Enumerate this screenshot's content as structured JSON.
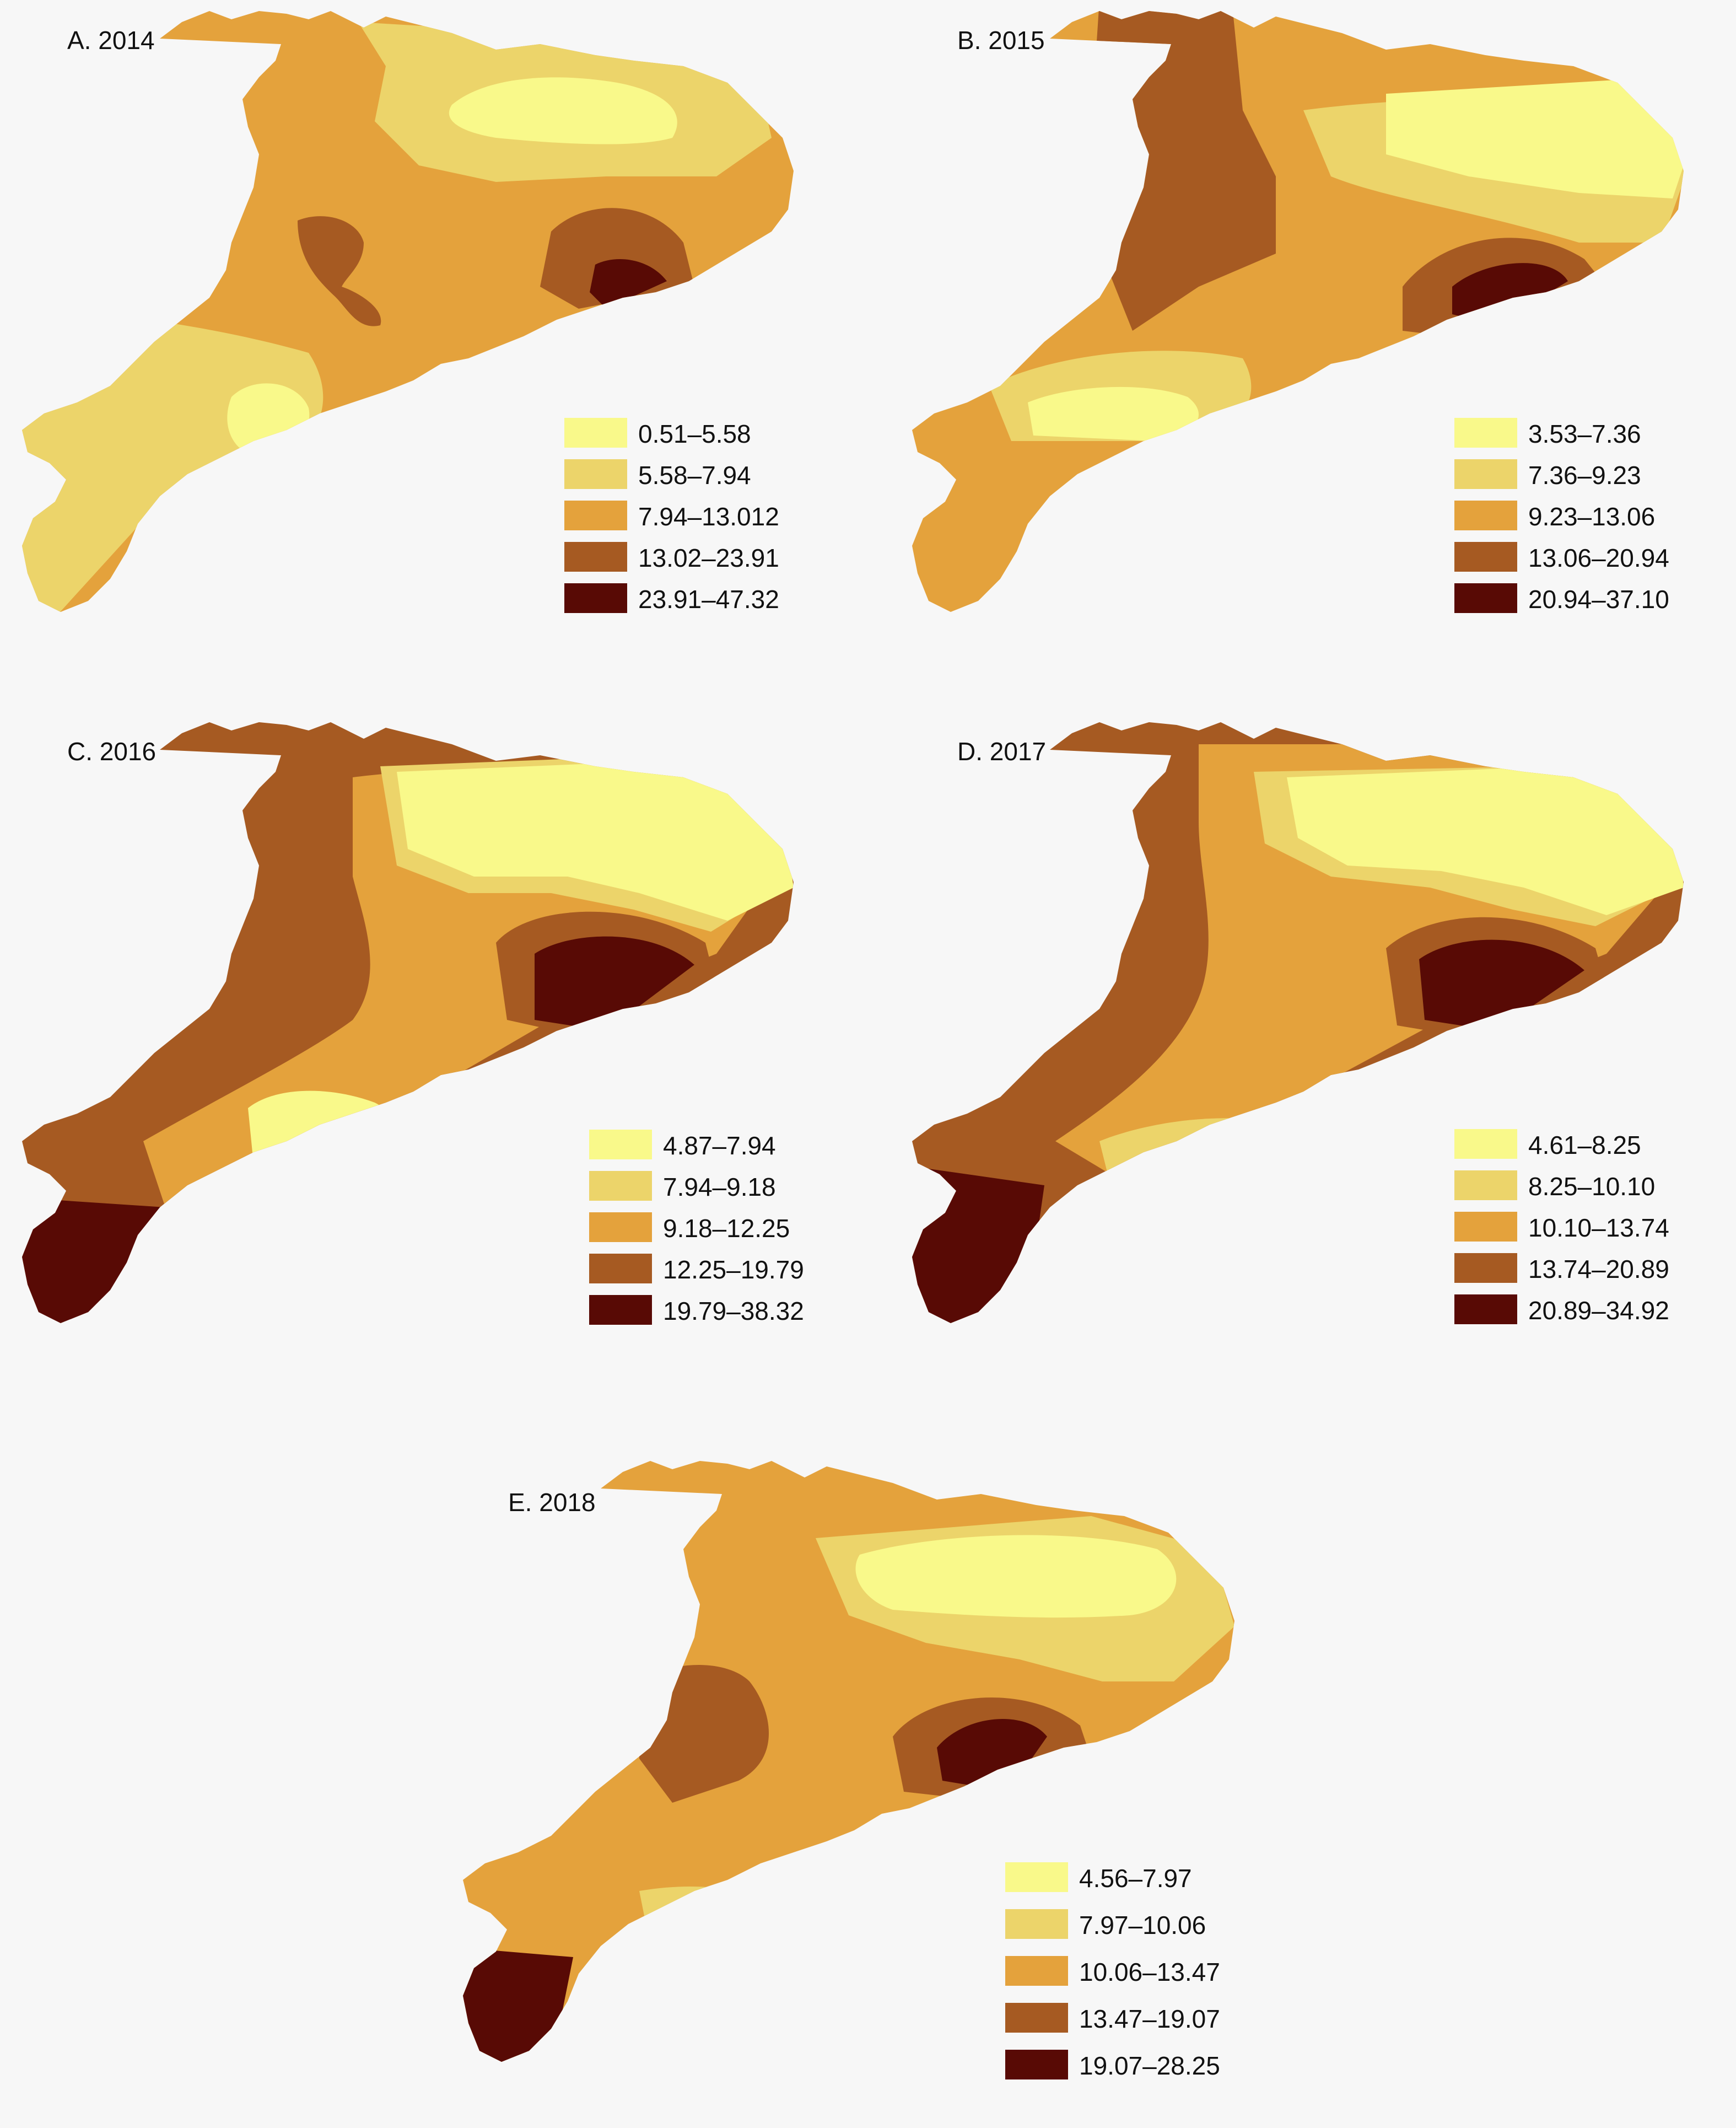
{
  "palette": {
    "class1": "#f9f98a",
    "class2": "#ecd46a",
    "class3": "#e4a23c",
    "class4": "#a65a22",
    "class5": "#580a05",
    "background": "#f7f7f7"
  },
  "panels": [
    {
      "title": "A. 2014",
      "legend": [
        "0.51–5.58",
        "5.58–7.94",
        "7.94–13.012",
        "13.02–23.91",
        "23.91–47.32"
      ]
    },
    {
      "title": "B. 2015",
      "legend": [
        "3.53–7.36",
        "7.36–9.23",
        "9.23–13.06",
        "13.06–20.94",
        "20.94–37.10"
      ]
    },
    {
      "title": "C. 2016",
      "legend": [
        "4.87–7.94",
        "7.94–9.18",
        "9.18–12.25",
        "12.25–19.79",
        "19.79–38.32"
      ]
    },
    {
      "title": "D. 2017",
      "legend": [
        "4.61–8.25",
        "8.25–10.10",
        "10.10–13.74",
        "13.74–20.89",
        "20.89–34.92"
      ]
    },
    {
      "title": "E. 2018",
      "legend": [
        "4.56–7.97",
        "7.97–10.06",
        "10.06–13.47",
        "13.47–19.07",
        "19.07–28.25"
      ]
    }
  ]
}
